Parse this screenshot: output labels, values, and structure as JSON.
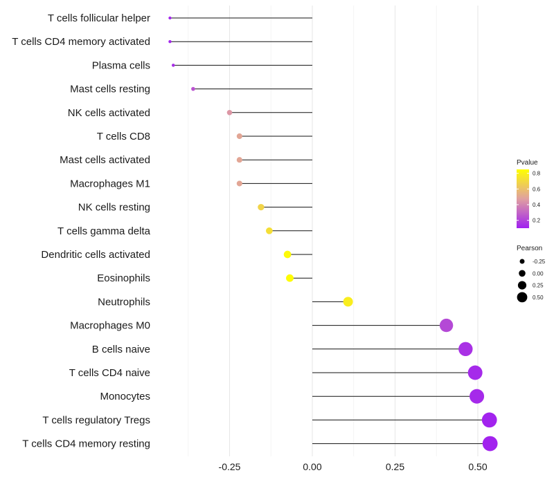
{
  "chart_data": {
    "type": "lollipop",
    "xlim": [
      -0.5,
      0.55
    ],
    "x_ticks": [
      -0.25,
      0.0,
      0.25,
      0.5
    ],
    "x_tick_labels": [
      "-0.25",
      "0.00",
      "0.25",
      "0.50"
    ],
    "grid": true,
    "color_legend": {
      "title": "Pvalue",
      "range": [
        0.1,
        0.85
      ],
      "ticks": [
        0.8,
        0.6,
        0.4,
        0.2
      ],
      "tick_labels": [
        "0.8",
        "0.6",
        "0.4",
        "0.2"
      ],
      "low_color": "#a020f0",
      "mid_color": "#e0a0a0",
      "high_color": "#ffff00"
    },
    "size_legend": {
      "title": "Pearson",
      "values": [
        -0.25,
        0.0,
        0.25,
        0.5
      ],
      "labels": [
        "-0.25",
        "0.00",
        "0.25",
        "0.50"
      ]
    },
    "points": [
      {
        "label": "T cells follicular helper",
        "value": -0.43,
        "pvalue": 0.12
      },
      {
        "label": "T cells CD4 memory activated",
        "value": -0.43,
        "pvalue": 0.12
      },
      {
        "label": "Plasma cells",
        "value": -0.42,
        "pvalue": 0.14
      },
      {
        "label": "Mast cells resting",
        "value": -0.36,
        "pvalue": 0.25
      },
      {
        "label": "NK cells activated",
        "value": -0.25,
        "pvalue": 0.45
      },
      {
        "label": "T cells CD8",
        "value": -0.22,
        "pvalue": 0.5
      },
      {
        "label": "Mast cells activated",
        "value": -0.22,
        "pvalue": 0.5
      },
      {
        "label": "Macrophages M1",
        "value": -0.22,
        "pvalue": 0.5
      },
      {
        "label": "NK cells resting",
        "value": -0.155,
        "pvalue": 0.68
      },
      {
        "label": "T cells gamma delta",
        "value": -0.13,
        "pvalue": 0.72
      },
      {
        "label": "Dendritic cells activated",
        "value": -0.075,
        "pvalue": 0.83
      },
      {
        "label": "Eosinophils",
        "value": -0.068,
        "pvalue": 0.84
      },
      {
        "label": "Neutrophils",
        "value": 0.108,
        "pvalue": 0.78
      },
      {
        "label": "Macrophages M0",
        "value": 0.405,
        "pvalue": 0.22
      },
      {
        "label": "B cells naive",
        "value": 0.463,
        "pvalue": 0.15
      },
      {
        "label": "T cells CD4 naive",
        "value": 0.492,
        "pvalue": 0.13
      },
      {
        "label": "Monocytes",
        "value": 0.497,
        "pvalue": 0.13
      },
      {
        "label": "T cells regulatory  Tregs",
        "value": 0.535,
        "pvalue": 0.11
      },
      {
        "label": "T cells CD4 memory resting",
        "value": 0.537,
        "pvalue": 0.11
      }
    ]
  }
}
